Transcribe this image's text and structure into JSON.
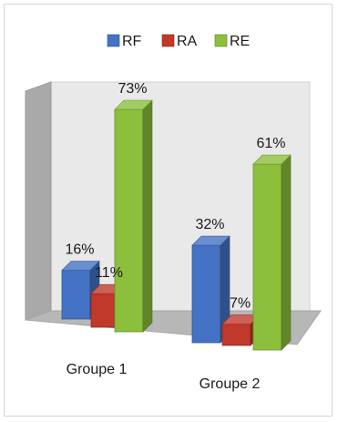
{
  "chart_data": {
    "type": "bar",
    "title": "",
    "xlabel": "",
    "ylabel": "",
    "ylim": [
      0,
      80
    ],
    "categories": [
      "Groupe 1",
      "Groupe 2"
    ],
    "series": [
      {
        "name": "RF",
        "values": [
          16,
          32
        ],
        "labels": [
          "16%",
          "32%"
        ],
        "color": "#4472c4"
      },
      {
        "name": "RA",
        "values": [
          11,
          7
        ],
        "labels": [
          "11%",
          "7%"
        ],
        "color": "#c0392b"
      },
      {
        "name": "RE",
        "values": [
          73,
          61
        ],
        "labels": [
          "73%",
          "61%"
        ],
        "color": "#8bbf3c"
      }
    ],
    "legend_position": "top",
    "grid": false,
    "style": "3d-clustered-column"
  }
}
